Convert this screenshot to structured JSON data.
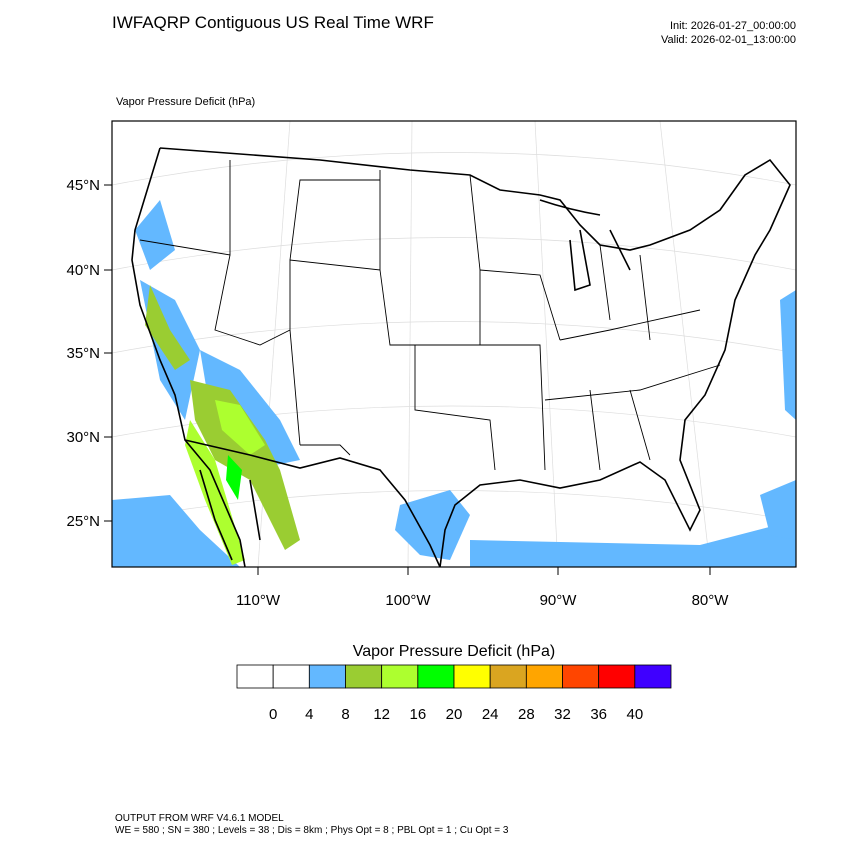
{
  "header": {
    "title": "IWFAQRP Contiguous US Real Time WRF",
    "init": "Init: 2026-01-27_00:00:00",
    "valid": "Valid: 2026-02-01_13:00:00"
  },
  "map": {
    "field_label": "Vapor Pressure Deficit   (hPa)",
    "lat_labels": [
      "45°N",
      "40°N",
      "35°N",
      "30°N",
      "25°N"
    ],
    "lon_labels": [
      "110°W",
      "100°W",
      "90°W",
      "80°W"
    ]
  },
  "colorbar": {
    "title": "Vapor Pressure Deficit  (hPa)",
    "colors": [
      "#ffffff",
      "#ffffff",
      "#63b8ff",
      "#9acd32",
      "#adff2f",
      "#00ff00",
      "#ffff00",
      "#daa520",
      "#ffa500",
      "#ff4500",
      "#ff0000",
      "#3f00ff"
    ],
    "labels": [
      0,
      4,
      8,
      12,
      16,
      20,
      24,
      28,
      32,
      36,
      40
    ]
  },
  "footer": {
    "line1": "OUTPUT FROM WRF V4.6.1 MODEL",
    "line2": "WE = 580 ; SN = 380 ; Levels = 38 ; Dis = 8km ; Phys Opt = 8 ; PBL Opt = 1 ; Cu Opt = 3"
  }
}
